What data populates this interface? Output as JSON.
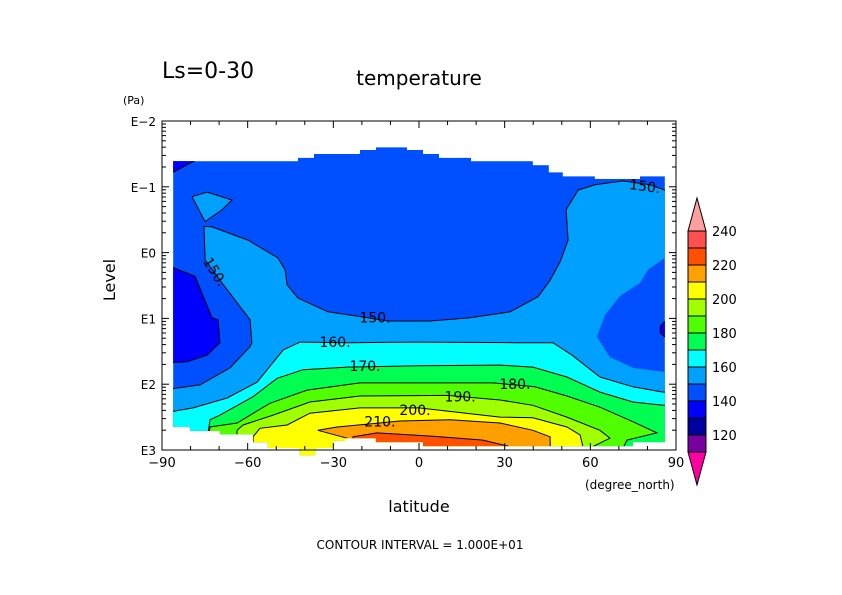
{
  "chart_data": {
    "type": "heatmap",
    "subtype": "filled-contour",
    "title": "temperature",
    "subtitle": "Ls=0-30",
    "xlabel": "latitude",
    "xunits": "(degree_north)",
    "ylabel": "Level",
    "yunits": "(Pa)",
    "y_scale": "log10",
    "xlim": [
      -90,
      90
    ],
    "ylim_log10_Pa": [
      3,
      -2
    ],
    "x_ticks": [
      -90,
      -60,
      -30,
      0,
      30,
      60,
      90
    ],
    "x_tick_labels": [
      "−90",
      "−60",
      "−30",
      "0",
      "30",
      "60",
      "90"
    ],
    "y_ticks_log10": [
      -2,
      -1,
      0,
      1,
      2,
      3
    ],
    "y_tick_labels": [
      "E−2",
      "E−1",
      "E0",
      "E1",
      "E2",
      "E3"
    ],
    "footer": "CONTOUR INTERVAL = 1.000E+01",
    "contour_interval": 10,
    "domain": [
      [
        -86.1,
        -1.39
      ],
      [
        -42.4,
        -1.39
      ],
      [
        -42.4,
        -1.44
      ],
      [
        -36.8,
        -1.44
      ],
      [
        -36.8,
        -1.5
      ],
      [
        -20.7,
        -1.5
      ],
      [
        -20.7,
        -1.56
      ],
      [
        -15.1,
        -1.56
      ],
      [
        -15.1,
        -1.6
      ],
      [
        -4.2,
        -1.6
      ],
      [
        -4.2,
        -1.56
      ],
      [
        1.4,
        -1.56
      ],
      [
        1.4,
        -1.5
      ],
      [
        7.0,
        -1.5
      ],
      [
        7.0,
        -1.44
      ],
      [
        18.2,
        -1.44
      ],
      [
        18.2,
        -1.39
      ],
      [
        39.9,
        -1.39
      ],
      [
        39.9,
        -1.33
      ],
      [
        45.5,
        -1.33
      ],
      [
        45.5,
        -1.22
      ],
      [
        50.4,
        -1.22
      ],
      [
        50.4,
        -1.16
      ],
      [
        61.6,
        -1.16
      ],
      [
        61.6,
        -1.12
      ],
      [
        77.4,
        -1.12
      ],
      [
        77.4,
        -1.16
      ],
      [
        86.1,
        -1.16
      ],
      [
        86.1,
        2.88
      ],
      [
        74.9,
        2.88
      ],
      [
        74.9,
        2.94
      ],
      [
        23.5,
        2.94
      ],
      [
        1.4,
        2.94
      ],
      [
        1.4,
        2.88
      ],
      [
        -15.1,
        2.88
      ],
      [
        -15.1,
        2.82
      ],
      [
        -25.9,
        2.82
      ],
      [
        -25.9,
        2.86
      ],
      [
        -30.1,
        2.86
      ],
      [
        -30.1,
        2.97
      ],
      [
        -36.4,
        2.97
      ],
      [
        -36.4,
        3.08
      ],
      [
        -41.7,
        3.08
      ],
      [
        -41.7,
        2.97
      ],
      [
        -52.9,
        2.97
      ],
      [
        -52.9,
        2.88
      ],
      [
        -58.1,
        2.88
      ],
      [
        -58.1,
        2.76
      ],
      [
        -69.7,
        2.76
      ],
      [
        -69.7,
        2.71
      ],
      [
        -80.2,
        2.71
      ],
      [
        -80.2,
        2.65
      ],
      [
        -86.1,
        2.65
      ]
    ],
    "base_band": "140-150",
    "regions": [
      {
        "band": "130-140",
        "line": [
          [
            -90,
            0.16
          ],
          [
            -78.4,
            0.36
          ],
          [
            -72.5,
            0.99
          ],
          [
            -70.4,
            1.02
          ],
          [
            -69.7,
            1.37
          ],
          [
            -74.2,
            1.56
          ],
          [
            -81.2,
            1.66
          ],
          [
            -90,
            1.68
          ]
        ],
        "close": []
      },
      {
        "band": "130-140",
        "line": [
          [
            -78.4,
            -1.4
          ],
          [
            -86.1,
            -1.22
          ],
          [
            -90,
            -1.2
          ]
        ],
        "close": [
          [
            -90,
            -1.4
          ]
        ]
      },
      {
        "band": "130-140",
        "line": [
          [
            90,
            1.05
          ],
          [
            86,
            1.05
          ],
          [
            84.5,
            1.12
          ],
          [
            84.5,
            1.22
          ],
          [
            86,
            1.28
          ],
          [
            90,
            1.28
          ]
        ],
        "close": []
      },
      {
        "band": "150-160",
        "line": [
          [
            -90,
            2.09
          ],
          [
            -76.7,
            2.01
          ],
          [
            -66.2,
            1.75
          ],
          [
            -59.2,
            1.43
          ],
          [
            -58.5,
            1.37
          ],
          [
            -59.2,
            1.02
          ],
          [
            -69.0,
            0.46
          ],
          [
            -74.9,
            0.11
          ],
          [
            -75.3,
            -0.4
          ],
          [
            -72.5,
            -0.39
          ],
          [
            -59.9,
            -0.19
          ],
          [
            -49.4,
            0.08
          ],
          [
            -46.9,
            0.26
          ],
          [
            -46.2,
            0.49
          ],
          [
            -42.4,
            0.69
          ],
          [
            -31.9,
            0.9
          ],
          [
            -22.4,
            0.96
          ],
          [
            -10.9,
            1.04
          ],
          [
            3.9,
            1.04
          ],
          [
            17.9,
            0.99
          ],
          [
            31.9,
            0.9
          ],
          [
            41.7,
            0.67
          ],
          [
            45.9,
            0.42
          ],
          [
            49.4,
            0.14
          ],
          [
            52.2,
            -0.19
          ],
          [
            51.5,
            -0.65
          ],
          [
            55.7,
            -0.95
          ],
          [
            61.6,
            -1.03
          ],
          [
            71.4,
            -1.09
          ],
          [
            80.9,
            -1.03
          ],
          [
            86.1,
            -0.95
          ],
          [
            90,
            -0.95
          ]
        ],
        "close": [
          [
            90,
            0.08
          ],
          [
            86.1,
            0.08
          ],
          [
            80.2,
            0.26
          ],
          [
            77.4,
            0.46
          ],
          [
            70.4,
            0.66
          ],
          [
            65.1,
            0.95
          ],
          [
            62.3,
            1.28
          ],
          [
            66.9,
            1.59
          ],
          [
            74.9,
            1.75
          ],
          [
            85.4,
            1.81
          ],
          [
            90,
            1.81
          ],
          [
            90,
            3.1
          ],
          [
            -90,
            3.1
          ]
        ]
      },
      {
        "band": "150-160",
        "line": [
          [
            -79.5,
            -0.85
          ],
          [
            -74.2,
            -0.92
          ],
          [
            -65.5,
            -0.8
          ],
          [
            -69.0,
            -0.65
          ],
          [
            -74.9,
            -0.47
          ],
          [
            -79.5,
            -0.85
          ]
        ],
        "close": []
      },
      {
        "band": "160-170",
        "line": [
          [
            -90,
            2.44
          ],
          [
            -79.1,
            2.36
          ],
          [
            -67.2,
            2.21
          ],
          [
            -56.7,
            1.97
          ],
          [
            -47.6,
            1.48
          ],
          [
            -41.7,
            1.36
          ],
          [
            -24.2,
            1.37
          ],
          [
            -0.7,
            1.36
          ],
          [
            34.3,
            1.37
          ],
          [
            46.9,
            1.37
          ],
          [
            53.6,
            1.56
          ],
          [
            63.4,
            1.89
          ],
          [
            74.9,
            2.04
          ],
          [
            85.4,
            2.12
          ],
          [
            90,
            2.12
          ]
        ],
        "close": [
          [
            90,
            3.1
          ],
          [
            -90,
            3.1
          ]
        ]
      },
      {
        "band": "170-180",
        "line": [
          [
            -75,
            3.1
          ],
          [
            -73.2,
            2.54
          ],
          [
            -69.7,
            2.47
          ],
          [
            -58.1,
            2.19
          ],
          [
            -49.7,
            1.91
          ],
          [
            -40.6,
            1.78
          ],
          [
            -25.2,
            1.74
          ],
          [
            0,
            1.72
          ],
          [
            28.4,
            1.71
          ],
          [
            39.9,
            1.74
          ],
          [
            51.8,
            1.89
          ],
          [
            63.4,
            2.12
          ],
          [
            74.9,
            2.27
          ],
          [
            85.4,
            2.32
          ],
          [
            90,
            2.32
          ]
        ],
        "close": [
          [
            90,
            3.1
          ]
        ]
      },
      {
        "band": "180-190",
        "line": [
          [
            -75,
            3.1
          ],
          [
            -73.2,
            2.65
          ],
          [
            -63.7,
            2.59
          ],
          [
            -52.2,
            2.29
          ],
          [
            -39.2,
            2.09
          ],
          [
            -20.7,
            1.98
          ],
          [
            25.9,
            1.98
          ],
          [
            40.6,
            2.04
          ],
          [
            51.8,
            2.18
          ],
          [
            63.4,
            2.35
          ],
          [
            74.9,
            2.57
          ],
          [
            83.3,
            2.74
          ],
          [
            72.8,
            2.85
          ],
          [
            70,
            3.1
          ]
        ],
        "close": []
      },
      {
        "band": "190-200",
        "line": [
          [
            -64,
            3.1
          ],
          [
            -63.7,
            2.7
          ],
          [
            -61.6,
            2.62
          ],
          [
            -51.1,
            2.47
          ],
          [
            -38.2,
            2.27
          ],
          [
            -20.7,
            2.18
          ],
          [
            10,
            2.17
          ],
          [
            28.4,
            2.24
          ],
          [
            39.9,
            2.32
          ],
          [
            51.8,
            2.5
          ],
          [
            63.4,
            2.7
          ],
          [
            66.9,
            2.82
          ],
          [
            59.9,
            2.97
          ],
          [
            59,
            3.1
          ]
        ],
        "close": []
      },
      {
        "band": "200-210",
        "line": [
          [
            -58,
            3.1
          ],
          [
            -58.1,
            2.8
          ],
          [
            -55.7,
            2.67
          ],
          [
            -46.2,
            2.62
          ],
          [
            -38.2,
            2.44
          ],
          [
            -20.7,
            2.36
          ],
          [
            0,
            2.36
          ],
          [
            28.4,
            2.5
          ],
          [
            39.9,
            2.51
          ],
          [
            51.8,
            2.65
          ],
          [
            56.4,
            2.77
          ],
          [
            57.4,
            2.95
          ],
          [
            57,
            3.1
          ]
        ],
        "close": []
      },
      {
        "band": "210-220",
        "line": [
          [
            -25,
            3.1
          ],
          [
            -25.2,
            2.82
          ],
          [
            -35.4,
            2.7
          ],
          [
            -28.7,
            2.65
          ],
          [
            -6.7,
            2.56
          ],
          [
            10.9,
            2.54
          ],
          [
            28.4,
            2.59
          ],
          [
            39.9,
            2.7
          ],
          [
            45.9,
            2.8
          ],
          [
            46,
            3.1
          ]
        ],
        "close": []
      },
      {
        "band": "220-230",
        "line": [
          [
            -23.1,
            3.1
          ],
          [
            -23.1,
            2.8
          ],
          [
            -14.7,
            2.74
          ],
          [
            4.9,
            2.79
          ],
          [
            22.4,
            2.85
          ],
          [
            31.2,
            2.94
          ],
          [
            31,
            3.1
          ]
        ],
        "close": []
      }
    ],
    "contour_labels": [
      {
        "text": "150.",
        "lat": -71.4,
        "logp": 0.29,
        "angle": 58
      },
      {
        "text": "150.",
        "lat": -15.4,
        "logp": 0.99,
        "angle": 0
      },
      {
        "text": "150.",
        "lat": 79.1,
        "logp": -1.01,
        "angle": 8
      },
      {
        "text": "160.",
        "lat": -29.4,
        "logp": 1.36,
        "angle": 0
      },
      {
        "text": "170.",
        "lat": -18.9,
        "logp": 1.72,
        "angle": 0
      },
      {
        "text": "180.",
        "lat": 33.6,
        "logp": 2.0,
        "angle": 0
      },
      {
        "text": "190.",
        "lat": 14.4,
        "logp": 2.19,
        "angle": 0
      },
      {
        "text": "200.",
        "lat": -1.4,
        "logp": 2.39,
        "angle": 0
      },
      {
        "text": "210.",
        "lat": -13.7,
        "logp": 2.57,
        "angle": 0
      }
    ],
    "colorbar": {
      "bands": [
        "110-120",
        "120-130",
        "130-140",
        "140-150",
        "150-160",
        "160-170",
        "170-180",
        "180-190",
        "190-200",
        "200-210",
        "210-220",
        "220-230",
        "230-240"
      ],
      "colors": {
        "below": "#ff00a0",
        "110-120": "#7800a0",
        "120-130": "#0000a0",
        "130-140": "#0000ff",
        "140-150": "#0050ff",
        "150-160": "#00a0ff",
        "160-170": "#00ffff",
        "170-180": "#00ff50",
        "180-190": "#50ff00",
        "190-200": "#a0ff00",
        "200-210": "#ffff00",
        "210-220": "#ffa000",
        "220-230": "#ff5000",
        "230-240": "#ff5050",
        "above": "#ffa0a0"
      },
      "tick_values": [
        240,
        220,
        200,
        180,
        160,
        140,
        120
      ],
      "tick_labels": [
        "240",
        "220",
        "200",
        "180",
        "160",
        "140",
        "120"
      ],
      "range": [
        110,
        240
      ]
    }
  }
}
